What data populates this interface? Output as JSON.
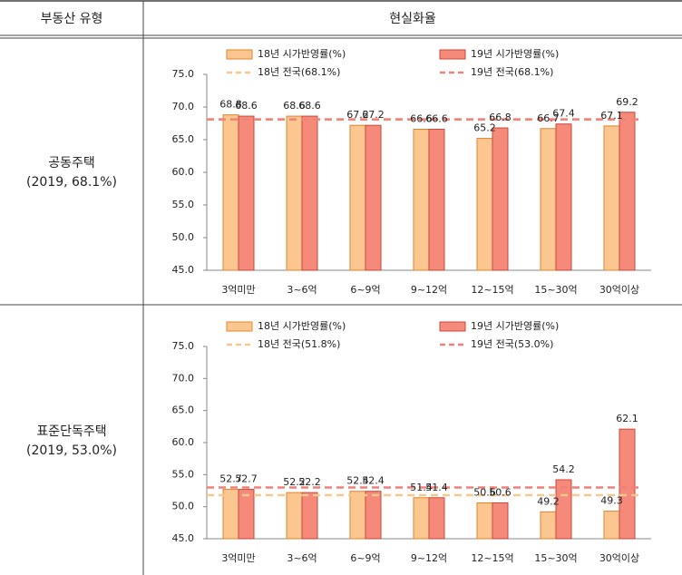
{
  "table": {
    "header": [
      "부동산 유형",
      "현실화율"
    ],
    "rows": [
      {
        "label": "공동주택",
        "sub": "(2019, 68.1%)"
      },
      {
        "label": "표준단독주택",
        "sub": "(2019, 53.0%)"
      }
    ]
  },
  "chart_data": [
    {
      "type": "bar",
      "categories": [
        "3억미만",
        "3~6억",
        "6~9억",
        "9~12억",
        "12~15억",
        "15~30억",
        "30억이상"
      ],
      "series": [
        {
          "name": "18년 시가반영률(%)",
          "color": "#fcc690",
          "stroke": "#e0842c",
          "values": [
            68.8,
            68.6,
            67.2,
            66.6,
            65.2,
            66.7,
            67.1
          ]
        },
        {
          "name": "19년 시가반영률(%)",
          "color": "#f5897a",
          "stroke": "#c9483c",
          "values": [
            68.6,
            68.6,
            67.2,
            66.6,
            66.8,
            67.4,
            69.2
          ]
        }
      ],
      "reference_lines": [
        {
          "name": "18년 전국(68.1%)",
          "value": 68.1,
          "color": "#f8c88e"
        },
        {
          "name": "19년 전국(68.1%)",
          "value": 68.1,
          "color": "#f08078"
        }
      ],
      "ylim": [
        45,
        75
      ],
      "yticks": [
        {
          "value": 45,
          "label": "45.0"
        },
        {
          "value": 50,
          "label": "50.0"
        },
        {
          "value": 55,
          "label": "55.0"
        },
        {
          "value": 60,
          "label": "60.0"
        },
        {
          "value": 65,
          "label": "65.0"
        },
        {
          "value": 70,
          "label": "70.0"
        },
        {
          "value": 75,
          "label": "75.0"
        }
      ]
    },
    {
      "type": "bar",
      "categories": [
        "3억미만",
        "3~6억",
        "6~9억",
        "9~12억",
        "12~15억",
        "15~30억",
        "30억이상"
      ],
      "series": [
        {
          "name": "18년 시가반영률(%)",
          "color": "#fcc690",
          "stroke": "#e0842c",
          "values": [
            52.7,
            52.2,
            52.4,
            51.4,
            50.6,
            49.2,
            49.3
          ]
        },
        {
          "name": "19년 시가반영률(%)",
          "color": "#f5897a",
          "stroke": "#c9483c",
          "values": [
            52.7,
            52.2,
            52.4,
            51.4,
            50.6,
            54.2,
            62.1
          ]
        }
      ],
      "reference_lines": [
        {
          "name": "18년 전국(51.8%)",
          "value": 51.8,
          "color": "#f8c88e"
        },
        {
          "name": "19년 전국(53.0%)",
          "value": 53.0,
          "color": "#f08078"
        }
      ],
      "ylim": [
        45,
        75
      ],
      "yticks": [
        {
          "value": 45,
          "label": "45.0"
        },
        {
          "value": 50,
          "label": "50.0"
        },
        {
          "value": 55,
          "label": "55.0"
        },
        {
          "value": 60,
          "label": "60.0"
        },
        {
          "value": 65,
          "label": "65.0"
        },
        {
          "value": 70,
          "label": "70.0"
        },
        {
          "value": 75,
          "label": "75.0"
        }
      ]
    }
  ]
}
